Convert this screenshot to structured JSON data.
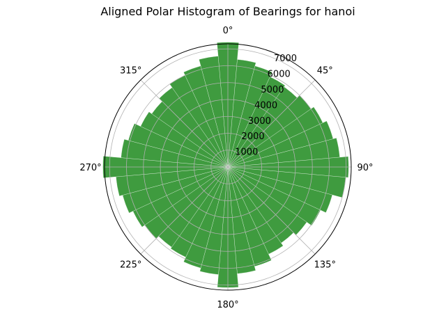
{
  "chart_data": {
    "type": "bar",
    "projection": "polar",
    "title": "Aligned Polar Histogram of Bearings for hanoi",
    "theta_zero": "north",
    "theta_direction": "clockwise",
    "bin_width_deg": 10,
    "bar_color": "#3f9b3f",
    "grid": true,
    "rlim": [
      0,
      7300
    ],
    "r_ticks": [
      1000,
      2000,
      3000,
      4000,
      5000,
      6000,
      7000
    ],
    "r_tick_labels": [
      "1000",
      "2000",
      "3000",
      "4000",
      "5000",
      "6000",
      "7000"
    ],
    "theta_ticks": [
      0,
      45,
      90,
      135,
      180,
      225,
      270,
      315
    ],
    "theta_tick_labels": [
      "0°",
      "45°",
      "90°",
      "135°",
      "180°",
      "225°",
      "270°",
      "315°"
    ],
    "bins": [
      {
        "bearing": 0,
        "count": 7400
      },
      {
        "bearing": 10,
        "count": 6400
      },
      {
        "bearing": 20,
        "count": 6200
      },
      {
        "bearing": 30,
        "count": 5900
      },
      {
        "bearing": 40,
        "count": 5800
      },
      {
        "bearing": 50,
        "count": 6000
      },
      {
        "bearing": 60,
        "count": 6200
      },
      {
        "bearing": 70,
        "count": 6450
      },
      {
        "bearing": 80,
        "count": 6650
      },
      {
        "bearing": 90,
        "count": 7150
      },
      {
        "bearing": 100,
        "count": 7000
      },
      {
        "bearing": 110,
        "count": 6400
      },
      {
        "bearing": 120,
        "count": 6050
      },
      {
        "bearing": 130,
        "count": 5700
      },
      {
        "bearing": 140,
        "count": 5500
      },
      {
        "bearing": 150,
        "count": 5700
      },
      {
        "bearing": 160,
        "count": 6100
      },
      {
        "bearing": 170,
        "count": 6350
      },
      {
        "bearing": 180,
        "count": 7150
      },
      {
        "bearing": 190,
        "count": 6400
      },
      {
        "bearing": 200,
        "count": 6200
      },
      {
        "bearing": 210,
        "count": 5900
      },
      {
        "bearing": 220,
        "count": 5800
      },
      {
        "bearing": 230,
        "count": 6000
      },
      {
        "bearing": 240,
        "count": 6200
      },
      {
        "bearing": 250,
        "count": 6450
      },
      {
        "bearing": 260,
        "count": 6650
      },
      {
        "bearing": 270,
        "count": 7400
      },
      {
        "bearing": 280,
        "count": 6350
      },
      {
        "bearing": 290,
        "count": 6100
      },
      {
        "bearing": 300,
        "count": 5700
      },
      {
        "bearing": 310,
        "count": 5500
      },
      {
        "bearing": 320,
        "count": 5750
      },
      {
        "bearing": 330,
        "count": 6000
      },
      {
        "bearing": 340,
        "count": 6200
      },
      {
        "bearing": 350,
        "count": 6600
      }
    ]
  }
}
